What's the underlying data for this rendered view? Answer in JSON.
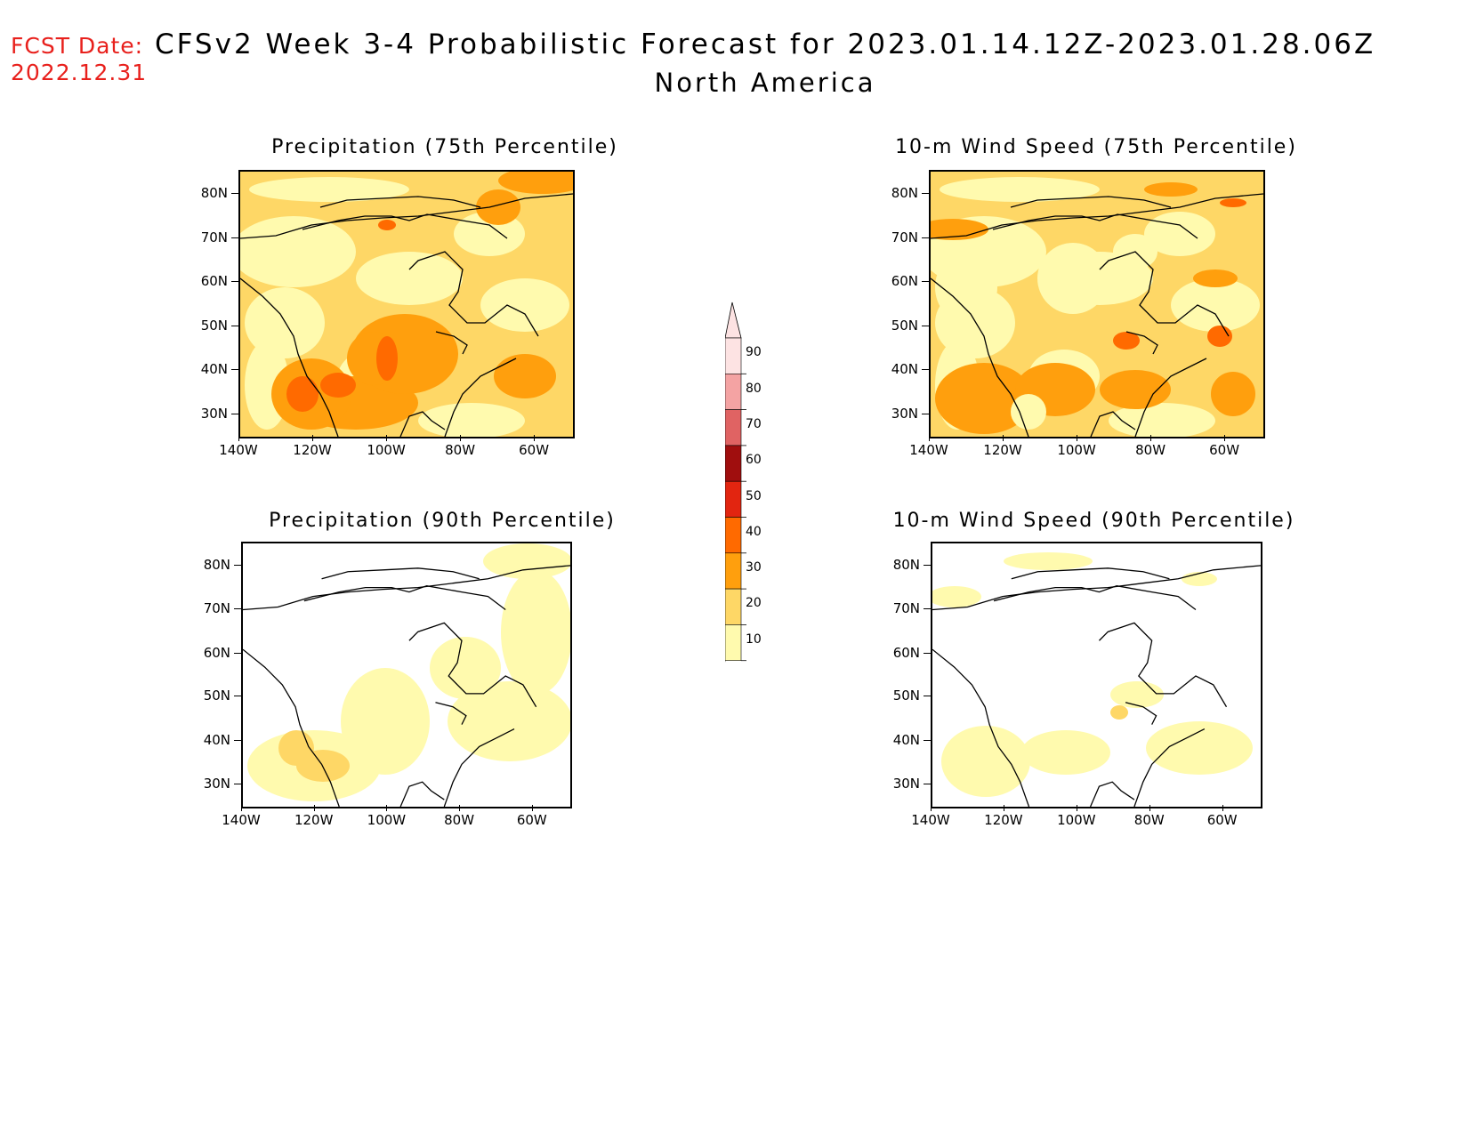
{
  "header": {
    "fcst_label": "FCST Date:",
    "fcst_date": "2022.12.31",
    "title_line1": "CFSv2 Week 3-4 Probabilistic Forecast for 2023.01.14.12Z-2023.01.28.06Z",
    "title_line2": "North America"
  },
  "axes": {
    "lat_labels": [
      "80N",
      "70N",
      "60N",
      "50N",
      "40N",
      "30N"
    ],
    "lon_labels": [
      "140W",
      "120W",
      "100W",
      "80W",
      "60W"
    ]
  },
  "panels": [
    {
      "id": "precip75",
      "title": "Precipitation (75th Percentile)",
      "level": "high"
    },
    {
      "id": "wind75",
      "title": "10-m Wind Speed (75th Percentile)",
      "level": "high"
    },
    {
      "id": "precip90",
      "title": "Precipitation (90th Percentile)",
      "level": "low"
    },
    {
      "id": "wind90",
      "title": "10-m Wind Speed (90th Percentile)",
      "level": "low"
    }
  ],
  "colorbar": {
    "levels": [
      "90",
      "80",
      "70",
      "60",
      "50",
      "40",
      "30",
      "20",
      "10"
    ],
    "colors": [
      "#fde3e3",
      "#f4a3a3",
      "#e06363",
      "#a00e0e",
      "#e22510",
      "#ff6a00",
      "#ff9f0d",
      "#fed766",
      "#fffaae"
    ]
  }
}
